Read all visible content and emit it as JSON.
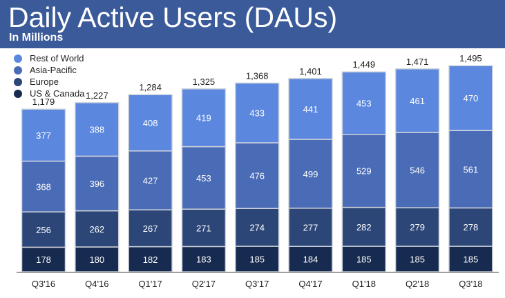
{
  "header": {
    "title": "Daily Active Users (DAUs)",
    "subtitle": "In Millions"
  },
  "chart_data": {
    "type": "bar",
    "stacked": true,
    "title": "Daily Active Users (DAUs)",
    "subtitle": "In Millions",
    "categories": [
      "Q3'16",
      "Q4'16",
      "Q1'17",
      "Q2'17",
      "Q3'17",
      "Q4'17",
      "Q1'18",
      "Q2'18",
      "Q3'18"
    ],
    "series": [
      {
        "name": "US & Canada",
        "color": "#172a4f",
        "values": [
          178,
          180,
          182,
          183,
          185,
          184,
          185,
          185,
          185
        ]
      },
      {
        "name": "Europe",
        "color": "#2c4677",
        "values": [
          256,
          262,
          267,
          271,
          274,
          277,
          282,
          279,
          278
        ]
      },
      {
        "name": "Asia-Pacific",
        "color": "#4a6bb5",
        "values": [
          368,
          396,
          427,
          453,
          476,
          499,
          529,
          546,
          561
        ]
      },
      {
        "name": "Rest of World",
        "color": "#5b88de",
        "values": [
          377,
          388,
          408,
          419,
          433,
          441,
          453,
          461,
          470
        ]
      }
    ],
    "totals": [
      "1,179",
      "1,227",
      "1,284",
      "1,325",
      "1,368",
      "1,401",
      "1,449",
      "1,471",
      "1,495"
    ],
    "legend": [
      "Rest of World",
      "Asia-Pacific",
      "Europe",
      "US & Canada"
    ],
    "legend_position": "top-left",
    "ylim": [
      0,
      1600
    ],
    "grid": false
  }
}
